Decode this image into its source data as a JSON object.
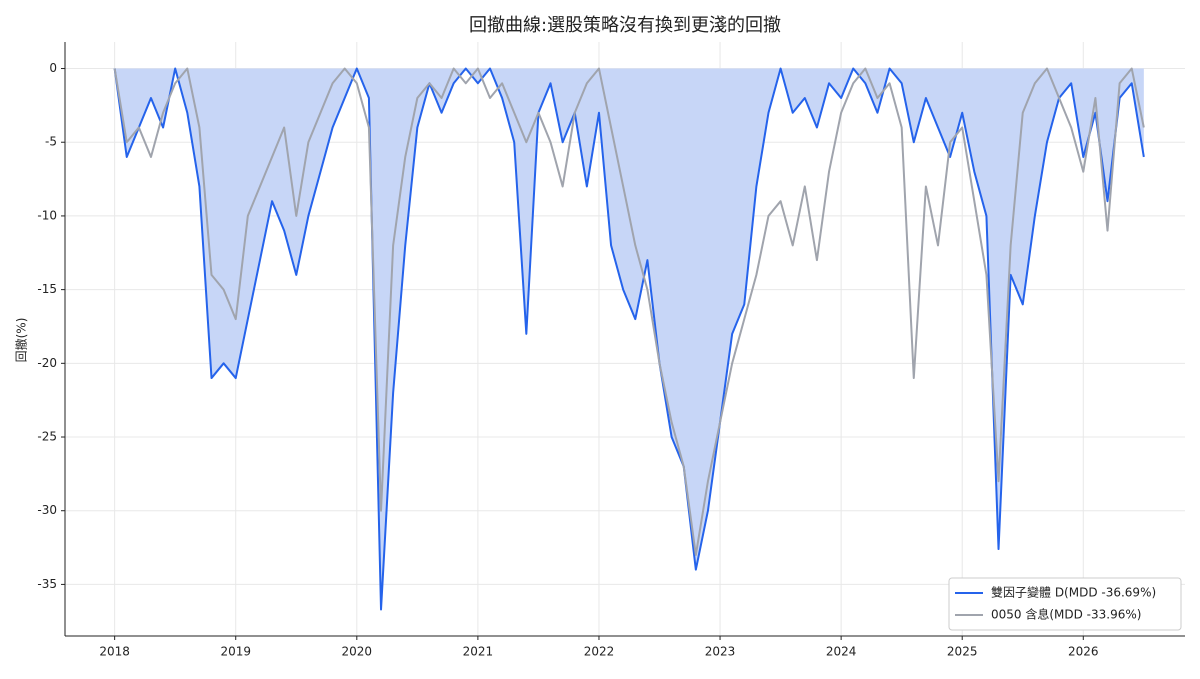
{
  "chart_data": {
    "type": "line",
    "title": "回撤曲線:選股策略沒有換到更淺的回撤",
    "y_label": "回撤(%)",
    "x": [
      2018.0,
      2018.1,
      2018.2,
      2018.3,
      2018.4,
      2018.5,
      2018.6,
      2018.7,
      2018.8,
      2018.9,
      2019.0,
      2019.1,
      2019.2,
      2019.3,
      2019.4,
      2019.5,
      2019.6,
      2019.7,
      2019.8,
      2019.9,
      2020.0,
      2020.1,
      2020.2,
      2020.3,
      2020.4,
      2020.5,
      2020.6,
      2020.7,
      2020.8,
      2020.9,
      2021.0,
      2021.1,
      2021.2,
      2021.3,
      2021.4,
      2021.5,
      2021.6,
      2021.7,
      2021.8,
      2021.9,
      2022.0,
      2022.1,
      2022.2,
      2022.3,
      2022.4,
      2022.5,
      2022.6,
      2022.7,
      2022.8,
      2022.9,
      2023.0,
      2023.1,
      2023.2,
      2023.3,
      2023.4,
      2023.5,
      2023.6,
      2023.7,
      2023.8,
      2023.9,
      2024.0,
      2024.1,
      2024.2,
      2024.3,
      2024.4,
      2024.5,
      2024.6,
      2024.7,
      2024.8,
      2024.9,
      2025.0,
      2025.1,
      2025.2,
      2025.3,
      2025.4,
      2025.5,
      2025.6,
      2025.7,
      2025.8,
      2025.9,
      2026.0,
      2026.1,
      2026.2,
      2026.3,
      2026.4,
      2026.5
    ],
    "series": [
      {
        "name": "雙因子變體 D(MDD -36.69%)",
        "color": "#2563eb",
        "fill": "#c7d6f7",
        "values": [
          0,
          -6,
          -4,
          -2,
          -4,
          0,
          -3,
          -8,
          -21,
          -20,
          -21,
          -17,
          -13,
          -9,
          -11,
          -14,
          -10,
          -7,
          -4,
          -2,
          0,
          -2,
          -36.7,
          -22,
          -12,
          -4,
          -1,
          -3,
          -1,
          0,
          -1,
          0,
          -2,
          -5,
          -18,
          -3,
          -1,
          -5,
          -3,
          -8,
          -3,
          -12,
          -15,
          -17,
          -13,
          -20,
          -25,
          -27,
          -34,
          -30,
          -24,
          -18,
          -16,
          -8,
          -3,
          0,
          -3,
          -2,
          -4,
          -1,
          -2,
          0,
          -1,
          -3,
          0,
          -1,
          -5,
          -2,
          -4,
          -6,
          -3,
          -7,
          -10,
          -32.6,
          -14,
          -16,
          -10,
          -5,
          -2,
          -1,
          -6,
          -3,
          -9,
          -2,
          -1,
          -6
        ]
      },
      {
        "name": "0050 含息(MDD -33.96%)",
        "color": "#a0a4ad",
        "values": [
          0,
          -5,
          -4,
          -6,
          -3,
          -1,
          0,
          -4,
          -14,
          -15,
          -17,
          -10,
          -8,
          -6,
          -4,
          -10,
          -5,
          -3,
          -1,
          0,
          -1,
          -4,
          -30,
          -12,
          -6,
          -2,
          -1,
          -2,
          0,
          -1,
          0,
          -2,
          -1,
          -3,
          -5,
          -3,
          -5,
          -8,
          -3,
          -1,
          0,
          -4,
          -8,
          -12,
          -15,
          -20,
          -24,
          -27,
          -33,
          -28,
          -24,
          -20,
          -17,
          -14,
          -10,
          -9,
          -12,
          -8,
          -13,
          -7,
          -3,
          -1,
          0,
          -2,
          -1,
          -4,
          -21,
          -8,
          -12,
          -5,
          -4,
          -9,
          -14,
          -28,
          -12,
          -3,
          -1,
          0,
          -2,
          -4,
          -7,
          -2,
          -11,
          -1,
          0,
          -4
        ]
      }
    ],
    "xlim": [
      2017.59,
      2026.84
    ],
    "xticks": [
      2018,
      2019,
      2020,
      2021,
      2022,
      2023,
      2024,
      2025,
      2026
    ],
    "ylim": [
      -38.5,
      1.8
    ],
    "yticks": [
      0,
      -5,
      -10,
      -15,
      -20,
      -25,
      -30,
      -35
    ],
    "grid": true,
    "legend": "lower right"
  }
}
